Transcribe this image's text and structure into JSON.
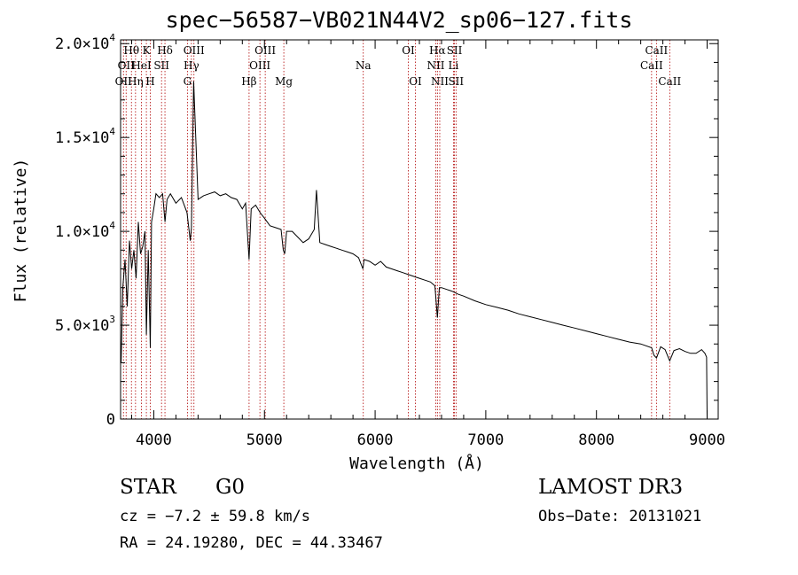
{
  "chart_data": {
    "type": "line",
    "title": "spec−56587−VB021N44V2_sp06−127.fits",
    "xlabel": "Wavelength (Å)",
    "ylabel": "Flux (relative)",
    "xlim": [
      3700,
      9100
    ],
    "ylim": [
      0,
      20200
    ],
    "xticks": [
      {
        "value": 4000,
        "label": "4000"
      },
      {
        "value": 5000,
        "label": "5000"
      },
      {
        "value": 6000,
        "label": "6000"
      },
      {
        "value": 7000,
        "label": "7000"
      },
      {
        "value": 8000,
        "label": "8000"
      },
      {
        "value": 9000,
        "label": "9000"
      }
    ],
    "yticks": [
      {
        "value": 0,
        "mantissa": "0",
        "exp": ""
      },
      {
        "value": 5000,
        "mantissa": "5.0×10",
        "exp": "3"
      },
      {
        "value": 10000,
        "mantissa": "1.0×10",
        "exp": "4"
      },
      {
        "value": 15000,
        "mantissa": "1.5×10",
        "exp": "4"
      },
      {
        "value": 20000,
        "mantissa": "2.0×10",
        "exp": "4"
      }
    ],
    "spectrum": {
      "x": [
        3705,
        3720,
        3740,
        3760,
        3780,
        3800,
        3820,
        3840,
        3860,
        3880,
        3900,
        3920,
        3933,
        3950,
        3968,
        3980,
        4000,
        4020,
        4050,
        4080,
        4101,
        4120,
        4150,
        4200,
        4250,
        4300,
        4330,
        4340,
        4360,
        4400,
        4450,
        4500,
        4550,
        4600,
        4650,
        4700,
        4750,
        4800,
        4830,
        4861,
        4880,
        4920,
        4960,
        5000,
        5050,
        5100,
        5150,
        5170,
        5183,
        5200,
        5250,
        5300,
        5350,
        5400,
        5450,
        5470,
        5500,
        5550,
        5600,
        5650,
        5700,
        5750,
        5800,
        5850,
        5890,
        5900,
        5950,
        6000,
        6050,
        6100,
        6150,
        6200,
        6250,
        6300,
        6350,
        6400,
        6450,
        6500,
        6540,
        6563,
        6580,
        6600,
        6650,
        6700,
        6750,
        6800,
        6900,
        7000,
        7100,
        7200,
        7300,
        7400,
        7500,
        7600,
        7700,
        7800,
        7900,
        8000,
        8100,
        8200,
        8300,
        8400,
        8498,
        8520,
        8542,
        8580,
        8620,
        8662,
        8700,
        8750,
        8800,
        8850,
        8900,
        8950,
        8980,
        8995,
        9000
      ],
      "y": [
        3000,
        7000,
        8500,
        6000,
        9500,
        8000,
        9000,
        7500,
        10500,
        8800,
        9200,
        10000,
        4500,
        9000,
        3800,
        10500,
        11200,
        12000,
        11800,
        12000,
        10500,
        11700,
        12000,
        11500,
        11800,
        11000,
        9500,
        10200,
        18000,
        11700,
        11900,
        12000,
        12100,
        11900,
        12000,
        11800,
        11700,
        11200,
        11500,
        8500,
        11200,
        11400,
        11000,
        10700,
        10300,
        10200,
        10100,
        9000,
        8800,
        10000,
        10000,
        9700,
        9400,
        9600,
        10100,
        12200,
        9400,
        9300,
        9200,
        9100,
        9000,
        8900,
        8800,
        8600,
        8000,
        8500,
        8400,
        8200,
        8400,
        8100,
        8000,
        7900,
        7800,
        7700,
        7600,
        7500,
        7400,
        7300,
        7100,
        5400,
        7000,
        7000,
        6900,
        6800,
        6650,
        6550,
        6300,
        6100,
        5950,
        5800,
        5600,
        5450,
        5300,
        5150,
        5000,
        4850,
        4700,
        4550,
        4400,
        4250,
        4100,
        4000,
        3800,
        3400,
        3250,
        3850,
        3700,
        3100,
        3650,
        3750,
        3600,
        3500,
        3500,
        3700,
        3500,
        3300,
        0
      ]
    },
    "lines": [
      {
        "wl": 3726,
        "label": "OII",
        "row": 2
      },
      {
        "wl": 3750,
        "label": "OII",
        "row": 1
      },
      {
        "wl": 3798,
        "label": "Hθ",
        "row": 0
      },
      {
        "wl": 3835,
        "label": "Hη",
        "row": 2
      },
      {
        "wl": 3889,
        "label": "HeI",
        "row": 1
      },
      {
        "wl": 3933,
        "label": "K",
        "row": 0
      },
      {
        "wl": 3968,
        "label": "H",
        "row": 2
      },
      {
        "wl": 4070,
        "label": "SII",
        "row": 1
      },
      {
        "wl": 4101,
        "label": "Hδ",
        "row": 0
      },
      {
        "wl": 4304,
        "label": "G",
        "row": 2
      },
      {
        "wl": 4340,
        "label": "Hγ",
        "row": 1
      },
      {
        "wl": 4363,
        "label": "OIII",
        "row": 0
      },
      {
        "wl": 4861,
        "label": "Hβ",
        "row": 2
      },
      {
        "wl": 4959,
        "label": "OIII",
        "row": 1
      },
      {
        "wl": 5007,
        "label": "OIII",
        "row": 0
      },
      {
        "wl": 5175,
        "label": "Mg",
        "row": 2
      },
      {
        "wl": 5893,
        "label": "Na",
        "row": 1
      },
      {
        "wl": 6300,
        "label": "OI",
        "row": 0
      },
      {
        "wl": 6364,
        "label": "OI",
        "row": 2
      },
      {
        "wl": 6548,
        "label": "NII",
        "row": 1
      },
      {
        "wl": 6563,
        "label": "Hα",
        "row": 0
      },
      {
        "wl": 6584,
        "label": "NII",
        "row": 2
      },
      {
        "wl": 6708,
        "label": "Li",
        "row": 1
      },
      {
        "wl": 6717,
        "label": "SII",
        "row": 0
      },
      {
        "wl": 6731,
        "label": "SII",
        "row": 2
      },
      {
        "wl": 8498,
        "label": "CaII",
        "row": 1
      },
      {
        "wl": 8542,
        "label": "CaII",
        "row": 0
      },
      {
        "wl": 8662,
        "label": "CaII",
        "row": 2
      }
    ]
  },
  "info": {
    "object_class": "STAR",
    "subclass": "G0",
    "survey": "LAMOST DR3",
    "cz": "cz = −7.2 ± 59.8 km/s",
    "obs_date": "Obs−Date: 20131021",
    "radec": "RA =  24.19280, DEC =  44.33467"
  },
  "colors": {
    "line_marker": "#b00000",
    "spectrum": "#000000",
    "axis": "#000000"
  }
}
